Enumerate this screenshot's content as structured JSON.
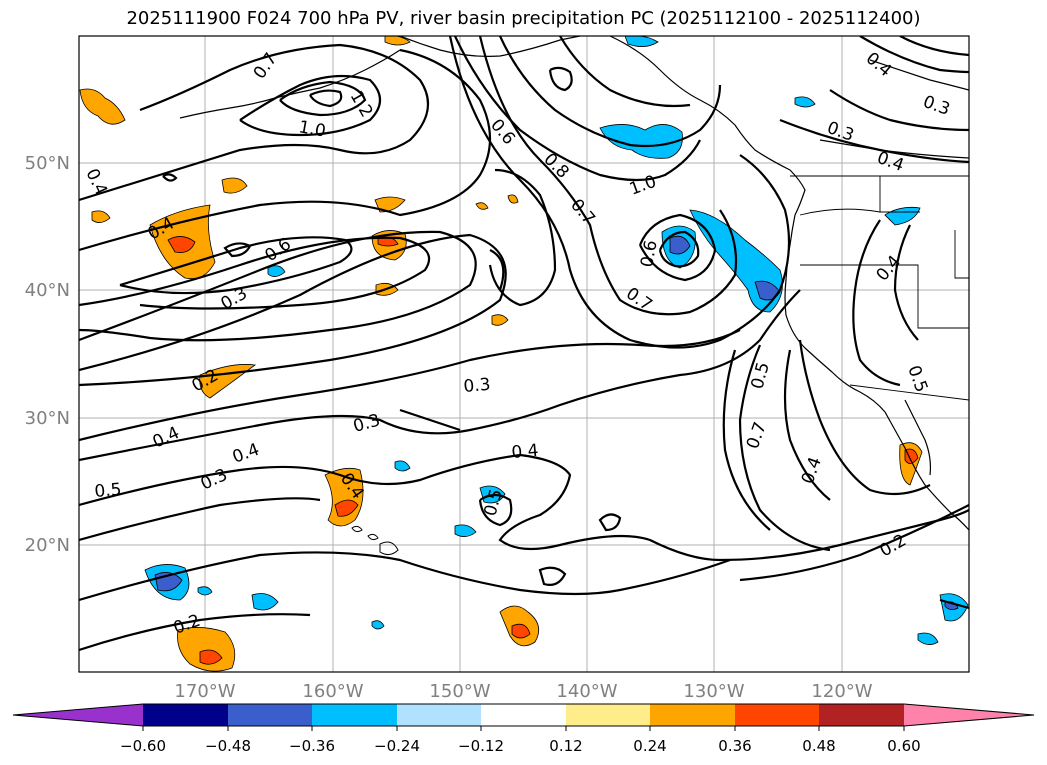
{
  "title": "2025111900 F024 700 hPa PV, river basin precipitation PC (2025112100 - 2025112400)",
  "lat_ticks": [
    "50°N",
    "40°N",
    "30°N",
    "20°N"
  ],
  "lon_ticks": [
    "170°W",
    "160°W",
    "150°W",
    "140°W",
    "130°W",
    "120°W"
  ],
  "colorbar": {
    "tick_labels": [
      "−0.60",
      "−0.48",
      "−0.36",
      "−0.24",
      "−0.12",
      "0.12",
      "0.24",
      "0.36",
      "0.48",
      "0.60"
    ],
    "colors": [
      "#9932cc",
      "#00008b",
      "#3a5fcd",
      "#00bfff",
      "#b0e2ff",
      "#ffffff",
      "#ffec8b",
      "#ffa500",
      "#ff4500",
      "#b22222",
      "#ff82ab"
    ]
  },
  "contour_labels": [
    "0.7",
    "1.2",
    "1.0",
    "0.6",
    "0.8",
    "0.7",
    "1.0",
    "0.4",
    "0.3",
    "0.3",
    "0.4",
    "0.4",
    "0.6",
    "0.3",
    "0.6",
    "0.7",
    "0.4",
    "0.2",
    "0.3",
    "0.3",
    "0.4",
    "0.3",
    "0.4",
    "0.5",
    "0.4",
    "0.5",
    "0.5",
    "0.7",
    "0.4",
    "0.2",
    "0.2",
    "0.4",
    "0.5",
    "0.4"
  ]
}
